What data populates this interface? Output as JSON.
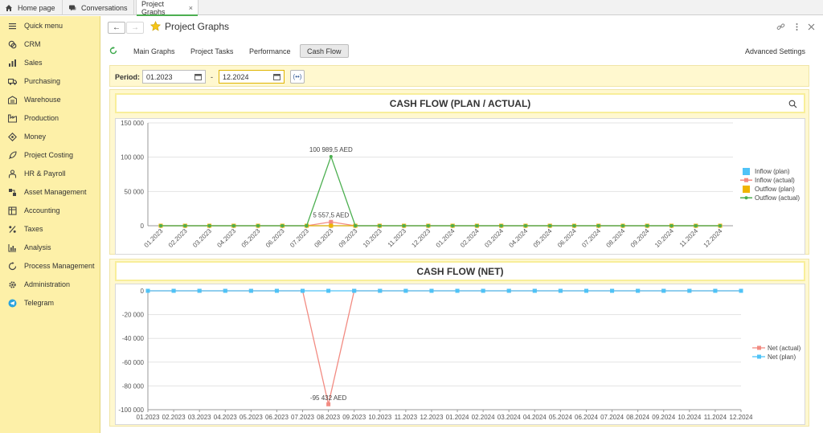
{
  "tabs": [
    {
      "label": "Home page",
      "icon": "home-icon"
    },
    {
      "label": "Conversations",
      "icon": "chat-icon"
    },
    {
      "label": "Project Graphs",
      "icon": "",
      "active": true,
      "close": "×"
    }
  ],
  "sidebar": {
    "items": [
      {
        "label": "Quick menu",
        "icon": "menu-icon"
      },
      {
        "label": "CRM",
        "icon": "crm-icon"
      },
      {
        "label": "Sales",
        "icon": "sales-icon"
      },
      {
        "label": "Purchasing",
        "icon": "truck-icon"
      },
      {
        "label": "Warehouse",
        "icon": "warehouse-icon"
      },
      {
        "label": "Production",
        "icon": "factory-icon"
      },
      {
        "label": "Money",
        "icon": "money-icon"
      },
      {
        "label": "Project Costing",
        "icon": "rocket-icon"
      },
      {
        "label": "HR & Payroll",
        "icon": "person-icon"
      },
      {
        "label": "Asset Management",
        "icon": "asset-icon"
      },
      {
        "label": "Accounting",
        "icon": "ledger-icon"
      },
      {
        "label": "Taxes",
        "icon": "percent-icon"
      },
      {
        "label": "Analysis",
        "icon": "bar-chart-icon"
      },
      {
        "label": "Process Management",
        "icon": "process-icon"
      },
      {
        "label": "Administration",
        "icon": "gear-icon"
      },
      {
        "label": "Telegram",
        "icon": "telegram-icon"
      }
    ]
  },
  "header": {
    "title": "Project Graphs",
    "back": "←",
    "forward": "→"
  },
  "subtabs": [
    "Main Graphs",
    "Project Tasks",
    "Performance",
    "Cash Flow"
  ],
  "active_subtab": "Cash Flow",
  "advanced_settings": "Advanced Settings",
  "period": {
    "label": "Period:",
    "from": "01.2023",
    "to": "12.2024",
    "separator": "-",
    "button": "(••)"
  },
  "chart_data": [
    {
      "type": "line",
      "title": "CASH FLOW (PLAN / ACTUAL)",
      "categories": [
        "01.2023",
        "02.2023",
        "03.2023",
        "04.2023",
        "05.2023",
        "06.2023",
        "07.2023",
        "08.2023",
        "09.2023",
        "10.2023",
        "11.2023",
        "12.2023",
        "01.2024",
        "02.2024",
        "03.2024",
        "04.2024",
        "05.2024",
        "06.2024",
        "07.2024",
        "08.2024",
        "09.2024",
        "10.2024",
        "11.2024",
        "12.2024"
      ],
      "ylim": [
        0,
        150000
      ],
      "yticks": [
        "0",
        "50 000",
        "100 000",
        "150 000"
      ],
      "ytick_values": [
        0,
        50000,
        100000,
        150000
      ],
      "series": [
        {
          "name": "Inflow (plan)",
          "color": "#4fc3f7",
          "marker": "square",
          "values": [
            0,
            0,
            0,
            0,
            0,
            0,
            0,
            0,
            0,
            0,
            0,
            0,
            0,
            0,
            0,
            0,
            0,
            0,
            0,
            0,
            0,
            0,
            0,
            0
          ]
        },
        {
          "name": "Inflow (actual)",
          "color": "#f28b82",
          "marker": "square",
          "values": [
            0,
            0,
            0,
            0,
            0,
            0,
            0,
            5557.5,
            0,
            0,
            0,
            0,
            0,
            0,
            0,
            0,
            0,
            0,
            0,
            0,
            0,
            0,
            0,
            0
          ]
        },
        {
          "name": "Outflow (plan)",
          "color": "#f0b400",
          "marker": "square",
          "values": [
            0,
            0,
            0,
            0,
            0,
            0,
            0,
            0,
            0,
            0,
            0,
            0,
            0,
            0,
            0,
            0,
            0,
            0,
            0,
            0,
            0,
            0,
            0,
            0
          ]
        },
        {
          "name": "Outflow (actual)",
          "color": "#4caf50",
          "marker": "dot",
          "values": [
            0,
            0,
            0,
            0,
            0,
            0,
            0,
            100989.5,
            0,
            0,
            0,
            0,
            0,
            0,
            0,
            0,
            0,
            0,
            0,
            0,
            0,
            0,
            0,
            0
          ]
        }
      ],
      "annotations": [
        {
          "label": "100 989,5 AED",
          "index": 7,
          "value": 100989.5
        },
        {
          "label": "5 557,5 AED",
          "index": 7,
          "value": 5557.5
        }
      ],
      "legend": "right",
      "search_icon": "magnifier-icon"
    },
    {
      "type": "line",
      "title": "CASH FLOW (NET)",
      "categories": [
        "01.2023",
        "02.2023",
        "03.2023",
        "04.2023",
        "05.2023",
        "06.2023",
        "07.2023",
        "08.2023",
        "09.2023",
        "10.2023",
        "11.2023",
        "12.2023",
        "01.2024",
        "02.2024",
        "03.2024",
        "04.2024",
        "05.2024",
        "06.2024",
        "07.2024",
        "08.2024",
        "09.2024",
        "10.2024",
        "11.2024",
        "12.2024"
      ],
      "ylim": [
        -100000,
        0
      ],
      "yticks": [
        "0",
        "-20 000",
        "-40 000",
        "-60 000",
        "-80 000",
        "-100 000"
      ],
      "ytick_values": [
        0,
        -20000,
        -40000,
        -60000,
        -80000,
        -100000
      ],
      "series": [
        {
          "name": "Net (actual)",
          "color": "#f28b82",
          "marker": "square",
          "values": [
            0,
            0,
            0,
            0,
            0,
            0,
            0,
            -95432,
            0,
            0,
            0,
            0,
            0,
            0,
            0,
            0,
            0,
            0,
            0,
            0,
            0,
            0,
            0,
            0
          ]
        },
        {
          "name": "Net (plan)",
          "color": "#4fc3f7",
          "marker": "square",
          "values": [
            0,
            0,
            0,
            0,
            0,
            0,
            0,
            0,
            0,
            0,
            0,
            0,
            0,
            0,
            0,
            0,
            0,
            0,
            0,
            0,
            0,
            0,
            0,
            0
          ]
        }
      ],
      "annotations": [
        {
          "label": "-95 432 AED",
          "index": 7,
          "value": -95432
        }
      ],
      "legend": "right"
    }
  ]
}
